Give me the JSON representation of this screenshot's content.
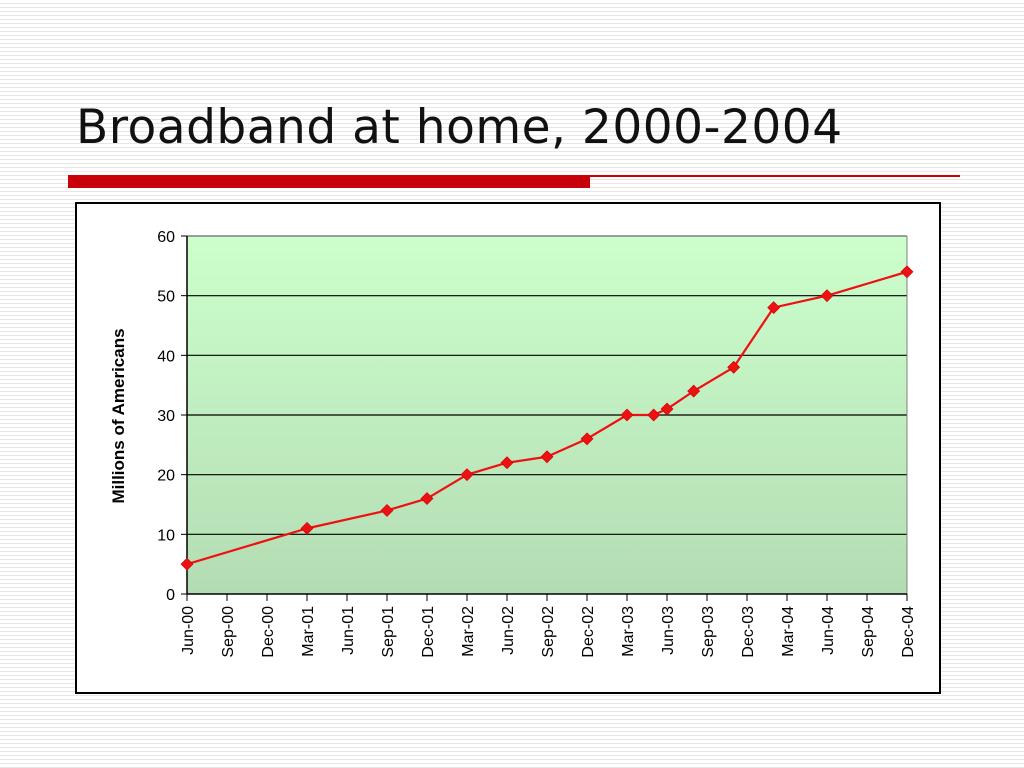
{
  "slide": {
    "title": "Broadband at home, 2000-2004",
    "accent_color": "#c8000a"
  },
  "chart_data": {
    "type": "line",
    "title": "",
    "xlabel": "",
    "ylabel": "Millions of Americans",
    "ylim": [
      0,
      60
    ],
    "yticks": [
      0,
      10,
      20,
      30,
      40,
      50,
      60
    ],
    "grid": true,
    "legend": "none",
    "x_tick_labels": [
      "Jun-00",
      "Sep-00",
      "Dec-00",
      "Mar-01",
      "Jun-01",
      "Sep-01",
      "Dec-01",
      "Mar-02",
      "Jun-02",
      "Sep-02",
      "Dec-02",
      "Mar-03",
      "Jun-03",
      "Sep-03",
      "Dec-03",
      "Mar-04",
      "Jun-04",
      "Sep-04",
      "Dec-04"
    ],
    "x_range": [
      "2000-06",
      "2004-12"
    ],
    "plot_background": [
      "#ccffcc",
      "#b4dcb4"
    ],
    "series": [
      {
        "color": "#ee1111",
        "marker": "diamond",
        "points": [
          {
            "x": "2000-06",
            "y": 5
          },
          {
            "x": "2001-03",
            "y": 11
          },
          {
            "x": "2001-09",
            "y": 14
          },
          {
            "x": "2001-12",
            "y": 16
          },
          {
            "x": "2002-03",
            "y": 20
          },
          {
            "x": "2002-06",
            "y": 22
          },
          {
            "x": "2002-09",
            "y": 23
          },
          {
            "x": "2002-12",
            "y": 26
          },
          {
            "x": "2003-03",
            "y": 30
          },
          {
            "x": "2003-05",
            "y": 30
          },
          {
            "x": "2003-06",
            "y": 31
          },
          {
            "x": "2003-08",
            "y": 34
          },
          {
            "x": "2003-11",
            "y": 38
          },
          {
            "x": "2004-02",
            "y": 48
          },
          {
            "x": "2004-06",
            "y": 50
          },
          {
            "x": "2004-12",
            "y": 54
          }
        ]
      }
    ]
  }
}
